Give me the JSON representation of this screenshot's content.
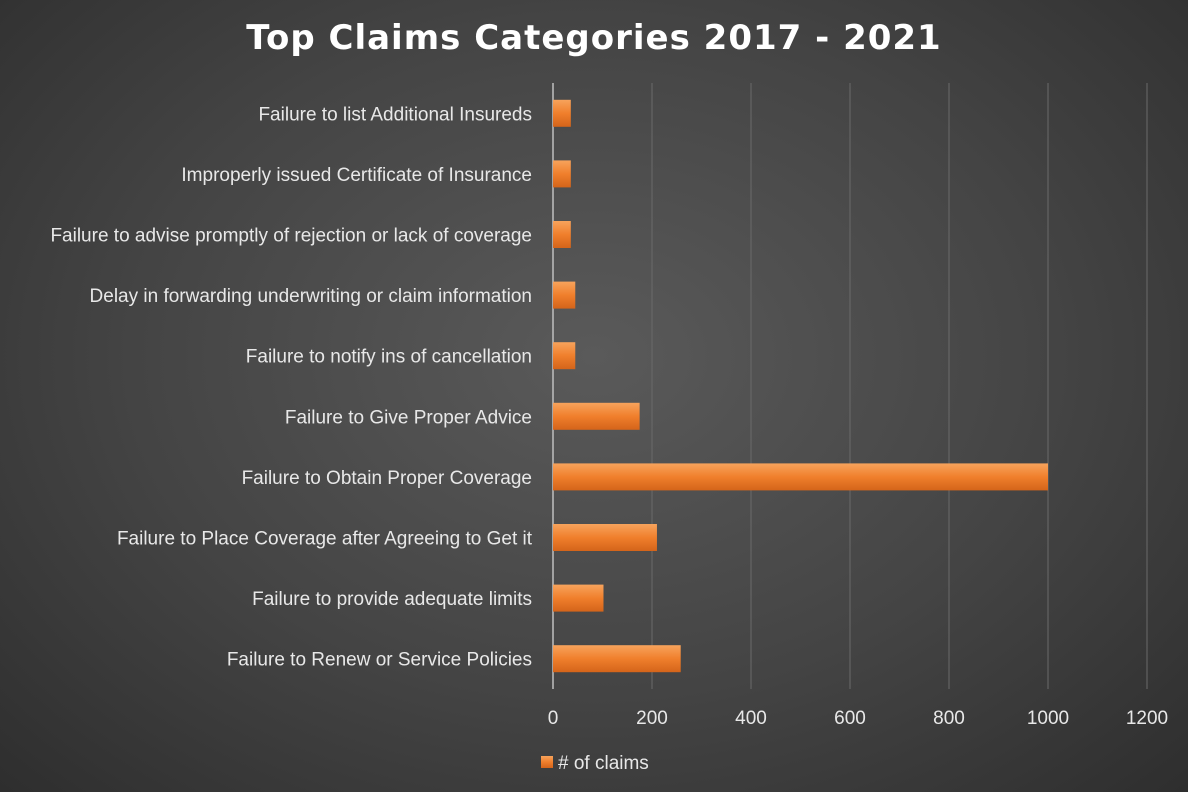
{
  "chart_data": {
    "type": "bar",
    "orientation": "horizontal",
    "title": "Top Claims Categories 2017 - 2021",
    "categories": [
      "Failure to list Additional Insureds",
      "Improperly issued Certificate of Insurance",
      "Failure to advise promptly of rejection or lack of coverage",
      "Delay in forwarding underwriting or claim information",
      "Failure to notify ins of cancellation",
      "Failure to Give Proper Advice",
      "Failure to Obtain Proper Coverage",
      "Failure to Place Coverage after Agreeing to Get it",
      "Failure to provide adequate limits",
      "Failure to Renew or Service Policies"
    ],
    "series": [
      {
        "name": "# of claims",
        "values": [
          36,
          36,
          36,
          45,
          45,
          175,
          1000,
          210,
          102,
          258
        ]
      }
    ],
    "xlim": [
      0,
      1200
    ],
    "xticks": [
      "0",
      "200",
      "400",
      "600",
      "800",
      "1000",
      "1200"
    ],
    "grid": "vertical",
    "legend_position": "bottom",
    "colors": {
      "bar": "#f07f2c",
      "bar_light": "#f7a35c",
      "bar_dark": "#d4641a",
      "grid": "#6a6a6a",
      "axis": "#bfbfbf"
    }
  }
}
